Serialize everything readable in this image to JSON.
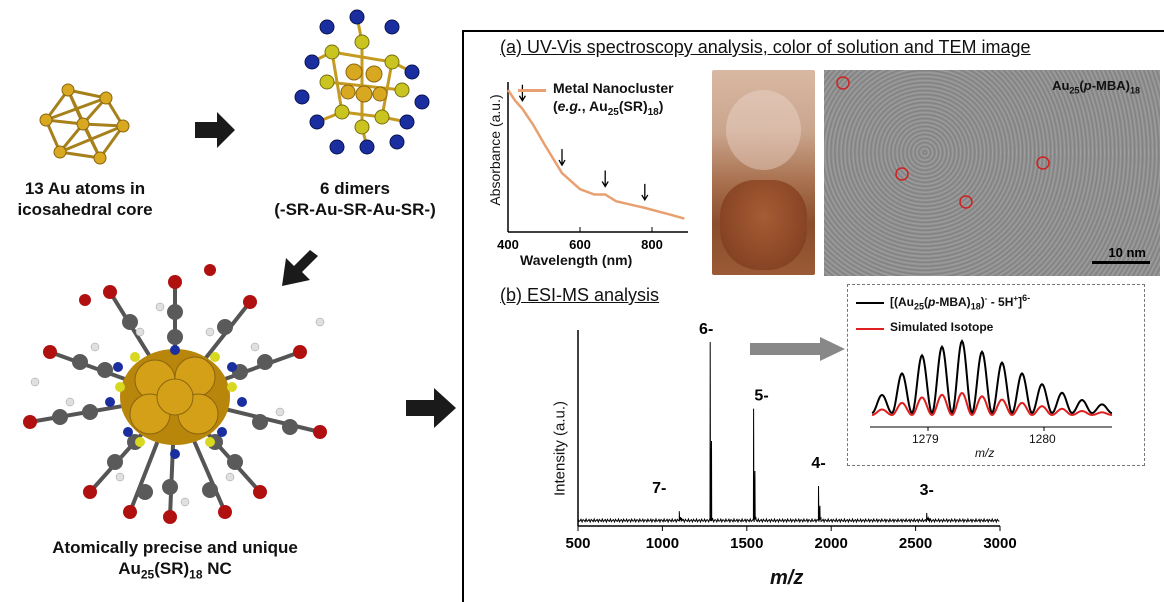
{
  "left": {
    "core_caption_line1": "13 Au atoms in",
    "core_caption_line2": "icosahedral core",
    "dimer_caption_line1": "6 dimers",
    "dimer_caption_line2": "(-SR-Au-SR-Au-SR-)",
    "nc_caption_line1": "Atomically precise and unique",
    "nc_caption_line2_pre": "Au",
    "nc_caption_line2_sub1": "25",
    "nc_caption_line2_mid": "(SR)",
    "nc_caption_line2_sub2": "18",
    "nc_caption_line2_post": " NC"
  },
  "panel_a": {
    "title": "(a) UV-Vis spectroscopy analysis,  color of solution and TEM image",
    "legend_line1": "Metal Nanocluster",
    "legend_line2": "(e.g., Au25(SR)18)",
    "ylabel": "Absorbance (a.u.)",
    "xlabel": "Wavelength (nm)",
    "xticks": [
      "400",
      "600",
      "800"
    ],
    "tem_label": "Au25(p-MBA)18",
    "scale_label": "10 nm",
    "colors": {
      "curve": "#e8a070"
    }
  },
  "panel_b": {
    "title": "(b) ESI-MS  analysis",
    "ylabel": "Intensity (a.u.)",
    "xlabel": "m/z",
    "xticks": [
      "500",
      "1000",
      "1500",
      "2000",
      "2500",
      "3000"
    ],
    "peaks": [
      {
        "label": "7-",
        "mz": 1100,
        "rel": 0.06
      },
      {
        "label": "6-",
        "mz": 1283,
        "rel": 1.0
      },
      {
        "label": "5-",
        "mz": 1540,
        "rel": 0.63
      },
      {
        "label": "4-",
        "mz": 1925,
        "rel": 0.2
      },
      {
        "label": "3-",
        "mz": 2566,
        "rel": 0.05
      }
    ],
    "inset": {
      "legend1": "[(Au25(p-MBA)18)- - 5H+]6-",
      "legend2": "Simulated Isotope",
      "xticks": [
        "1279",
        "1280"
      ],
      "xlabel": "m/z",
      "colors": {
        "exp": "#000000",
        "sim": "#e02020"
      }
    }
  },
  "chart_data": [
    {
      "type": "line",
      "title": "",
      "xlabel": "Wavelength (nm)",
      "ylabel": "Absorbance (a.u.)",
      "xlim": [
        400,
        900
      ],
      "series": [
        {
          "name": "Metal Nanocluster (e.g., Au25(SR)18)",
          "x": [
            400,
            420,
            440,
            470,
            500,
            550,
            600,
            640,
            670,
            700,
            780,
            850,
            890
          ],
          "y": [
            1.0,
            0.92,
            0.86,
            0.74,
            0.6,
            0.38,
            0.26,
            0.22,
            0.22,
            0.17,
            0.12,
            0.07,
            0.04
          ]
        }
      ]
    },
    {
      "type": "line",
      "title": "",
      "xlabel": "m/z",
      "ylabel": "Intensity (a.u.)",
      "xlim": [
        500,
        3000
      ],
      "series": [
        {
          "name": "",
          "x": [
            1100,
            1283,
            1540,
            1925,
            2566
          ],
          "y": [
            0.06,
            1.0,
            0.63,
            0.2,
            0.05
          ]
        }
      ]
    }
  ]
}
